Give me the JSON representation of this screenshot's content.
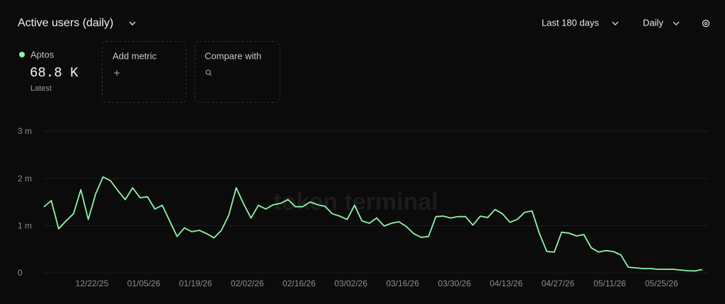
{
  "header": {
    "title": "Active users (daily)",
    "range": "Last 180 days",
    "interval": "Daily"
  },
  "legend": {
    "latest_value": "68.8 K",
    "latest_note": "Latest"
  },
  "placeholders": {
    "add_metric": "Add metric",
    "compare_with": "Compare with"
  },
  "chart_data": {
    "type": "line",
    "watermark": "token terminal_",
    "x": [
      "12/09/25",
      "12/11/25",
      "12/13/25",
      "12/15/25",
      "12/17/25",
      "12/19/25",
      "12/21/25",
      "12/23/25",
      "12/25/25",
      "12/27/25",
      "12/29/25",
      "12/31/25",
      "01/02/26",
      "01/04/26",
      "01/06/26",
      "01/08/26",
      "01/10/26",
      "01/12/26",
      "01/14/26",
      "01/16/26",
      "01/18/26",
      "01/20/26",
      "01/22/26",
      "01/24/26",
      "01/26/26",
      "01/28/26",
      "01/30/26",
      "02/01/26",
      "02/03/26",
      "02/05/26",
      "02/07/26",
      "02/09/26",
      "02/11/26",
      "02/13/26",
      "02/15/26",
      "02/17/26",
      "02/19/26",
      "02/21/26",
      "02/23/26",
      "02/25/26",
      "02/27/26",
      "03/01/26",
      "03/03/26",
      "03/05/26",
      "03/07/26",
      "03/09/26",
      "03/11/26",
      "03/13/26",
      "03/15/26",
      "03/17/26",
      "03/19/26",
      "03/21/26",
      "03/23/26",
      "03/25/26",
      "03/27/26",
      "03/29/26",
      "03/31/26",
      "04/02/26",
      "04/04/26",
      "04/06/26",
      "04/08/26",
      "04/10/26",
      "04/12/26",
      "04/14/26",
      "04/16/26",
      "04/18/26",
      "04/20/26",
      "04/22/26",
      "04/24/26",
      "04/26/26",
      "04/28/26",
      "04/30/26",
      "05/02/26",
      "05/04/26",
      "05/06/26",
      "05/08/26",
      "05/10/26",
      "05/12/26",
      "05/14/26",
      "05/16/26",
      "05/18/26",
      "05/20/26",
      "05/22/26",
      "05/24/26",
      "05/26/26",
      "05/28/26",
      "05/30/26",
      "06/01/26",
      "06/03/26",
      "06/05/26"
    ],
    "series": [
      {
        "name": "Aptos",
        "color": "#8ef5a8",
        "values": [
          1395000,
          1530000,
          930000,
          1100000,
          1250000,
          1760000,
          1130000,
          1670000,
          2030000,
          1950000,
          1740000,
          1550000,
          1800000,
          1590000,
          1610000,
          1350000,
          1430000,
          1100000,
          770000,
          950000,
          870000,
          900000,
          830000,
          740000,
          900000,
          1220000,
          1800000,
          1460000,
          1160000,
          1430000,
          1350000,
          1440000,
          1470000,
          1550000,
          1400000,
          1400000,
          1500000,
          1440000,
          1410000,
          1250000,
          1200000,
          1130000,
          1430000,
          1100000,
          1050000,
          1160000,
          990000,
          1050000,
          1080000,
          980000,
          830000,
          750000,
          770000,
          1190000,
          1200000,
          1160000,
          1190000,
          1190000,
          1010000,
          1200000,
          1170000,
          1340000,
          1250000,
          1070000,
          1130000,
          1280000,
          1310000,
          830000,
          450000,
          440000,
          860000,
          840000,
          780000,
          810000,
          530000,
          440000,
          470000,
          450000,
          380000,
          120000,
          105000,
          90000,
          90000,
          75000,
          75000,
          75000,
          60000,
          45000,
          40000,
          68800
        ]
      }
    ],
    "xlim": [
      "12/09/25",
      "06/06/26"
    ],
    "xticks": [
      "12/22/25",
      "01/05/26",
      "01/19/26",
      "02/02/26",
      "02/16/26",
      "03/02/26",
      "03/16/26",
      "03/30/26",
      "04/13/26",
      "04/27/26",
      "05/11/26",
      "05/25/26"
    ],
    "ylim": [
      0,
      3000000
    ],
    "yticks": [
      {
        "value": 0,
        "label": "0"
      },
      {
        "value": 1000000,
        "label": "1 m"
      },
      {
        "value": 2000000,
        "label": "2 m"
      },
      {
        "value": 3000000,
        "label": "3 m"
      }
    ],
    "grid": true
  }
}
